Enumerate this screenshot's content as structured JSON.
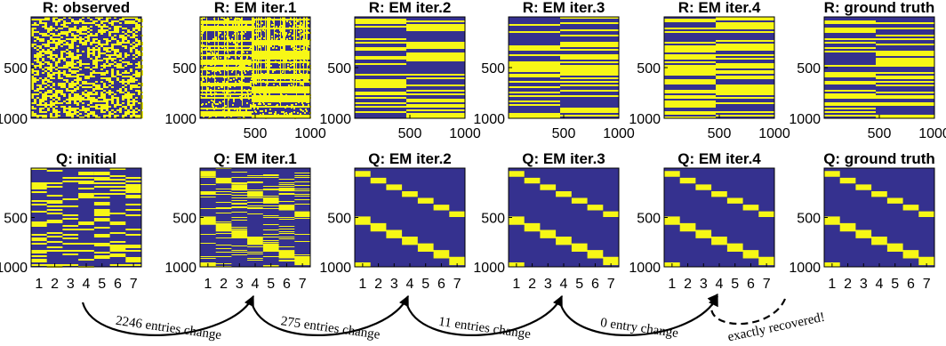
{
  "colors": {
    "low": "#35318f",
    "high": "#f7f716",
    "axis": "#000000"
  },
  "r_row": {
    "panels": [
      {
        "title": "R: observed",
        "pattern": "observed-noise"
      },
      {
        "title": "R: EM iter.1",
        "pattern": "two-block-noisy"
      },
      {
        "title": "R: EM iter.2",
        "pattern": "two-block-clean"
      },
      {
        "title": "R: EM iter.3",
        "pattern": "two-block-clean"
      },
      {
        "title": "R: EM iter.4",
        "pattern": "two-block-clean"
      },
      {
        "title": "R: ground truth",
        "pattern": "two-block-clean"
      }
    ],
    "y_ticks": [
      "500",
      "1000"
    ],
    "x_ticks": [
      "500",
      "1000"
    ]
  },
  "q_row": {
    "panels": [
      {
        "title": "Q: initial",
        "pattern": "random-7-col"
      },
      {
        "title": "Q: EM iter.1",
        "pattern": "staircase-noisy"
      },
      {
        "title": "Q: EM iter.2",
        "pattern": "staircase"
      },
      {
        "title": "Q: EM iter.3",
        "pattern": "staircase"
      },
      {
        "title": "Q: EM iter.4",
        "pattern": "staircase"
      },
      {
        "title": "Q: ground truth",
        "pattern": "staircase"
      }
    ],
    "y_ticks": [
      "500",
      "1000"
    ],
    "x_ticks": [
      "1",
      "2",
      "3",
      "4",
      "5",
      "6",
      "7"
    ]
  },
  "transitions": [
    {
      "label": "2246 entries change",
      "from": 0,
      "to": 1,
      "style": "solid"
    },
    {
      "label": "275 entries change",
      "from": 1,
      "to": 2,
      "style": "solid"
    },
    {
      "label": "11 entries change",
      "from": 2,
      "to": 3,
      "style": "solid"
    },
    {
      "label": "0 entry change",
      "from": 3,
      "to": 4,
      "style": "solid"
    },
    {
      "label": "exactly recovered!",
      "from": 4,
      "to": 5,
      "style": "dashed"
    }
  ],
  "chart_data": [
    {
      "type": "heatmap",
      "matrix": "R",
      "rows": 1000,
      "cols": 1000,
      "y_ticks": [
        500,
        1000
      ],
      "x_ticks": [
        500,
        1000
      ],
      "panels": [
        "R: observed",
        "R: EM iter.1",
        "R: EM iter.2",
        "R: EM iter.3",
        "R: EM iter.4",
        "R: ground truth"
      ]
    },
    {
      "type": "heatmap",
      "matrix": "Q",
      "rows": 1000,
      "cols": 7,
      "y_ticks": [
        500,
        1000
      ],
      "x_ticks": [
        1,
        2,
        3,
        4,
        5,
        6,
        7
      ],
      "panels": [
        "Q: initial",
        "Q: EM iter.1",
        "Q: EM iter.2",
        "Q: EM iter.3",
        "Q: EM iter.4",
        "Q: ground truth"
      ],
      "entries_changed": [
        2246,
        275,
        11,
        0
      ]
    }
  ]
}
